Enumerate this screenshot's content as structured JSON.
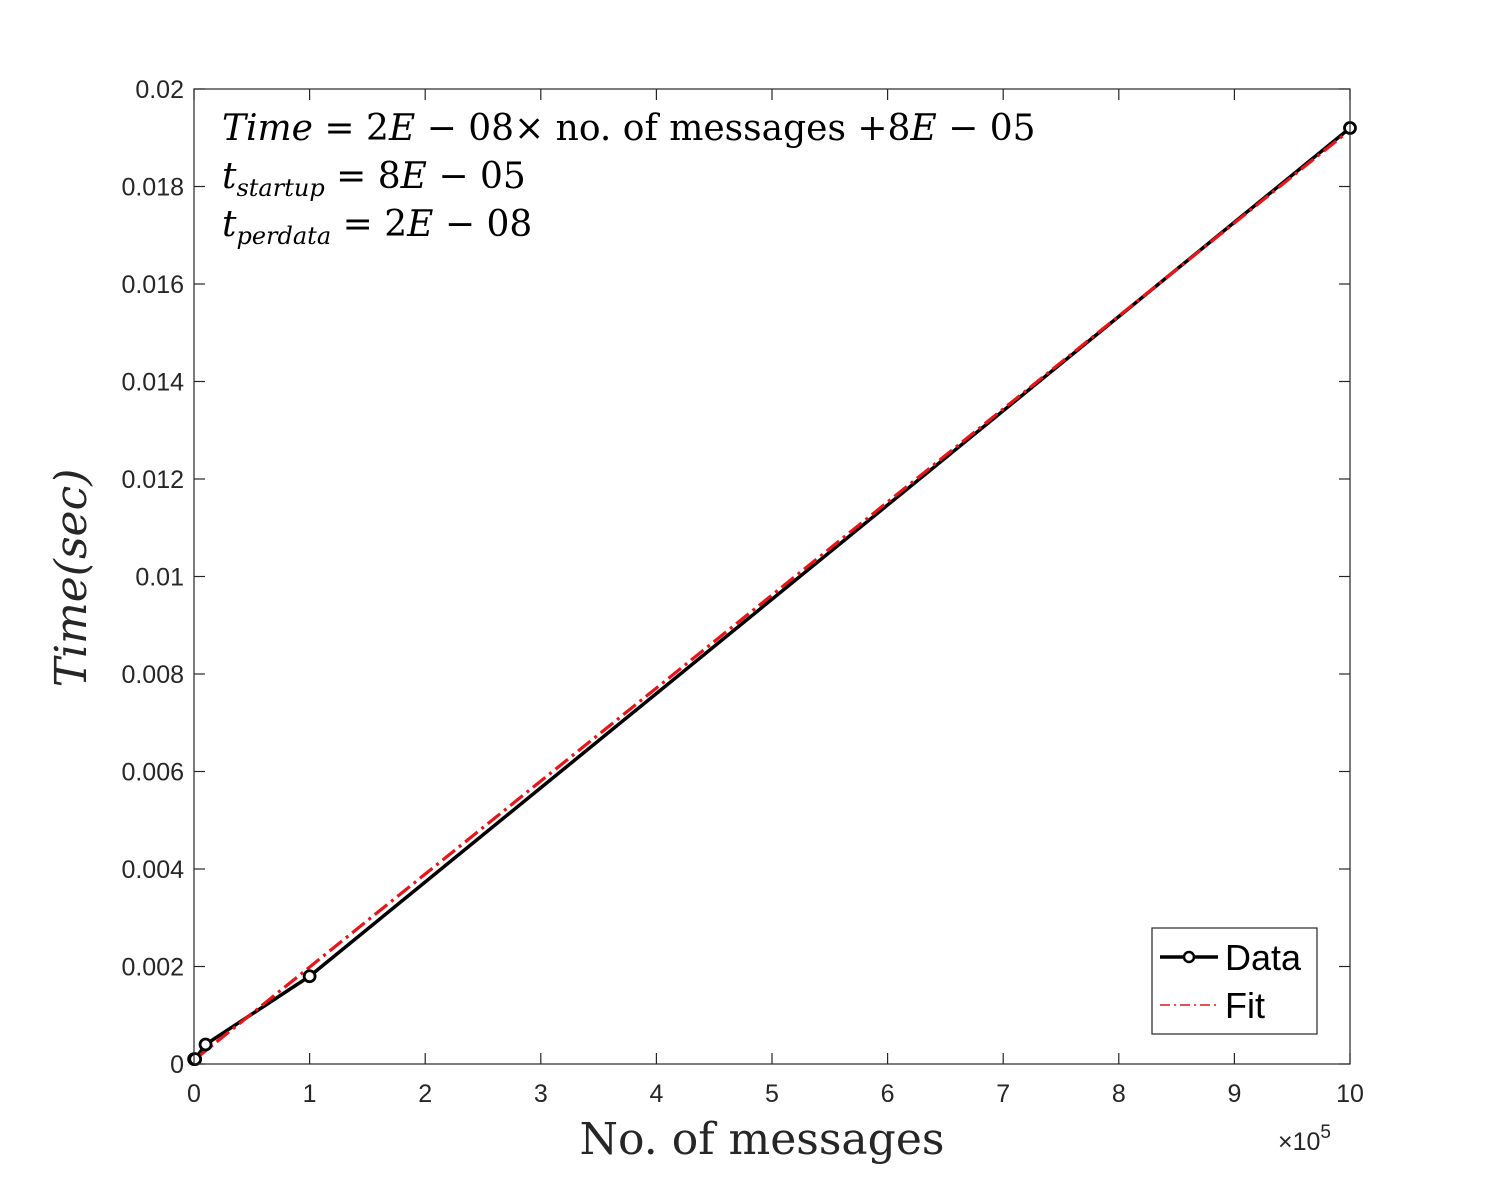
{
  "chart_data": {
    "type": "line",
    "xlabel": "No. of messages",
    "ylabel": "Time(sec)",
    "x_exponent_label": "×10",
    "x_exponent_power": "5",
    "xlim": [
      0,
      10
    ],
    "ylim": [
      0,
      0.02
    ],
    "x_ticks": [
      0,
      1,
      2,
      3,
      4,
      5,
      6,
      7,
      8,
      9,
      10
    ],
    "x_tick_labels": [
      "0",
      "1",
      "2",
      "3",
      "4",
      "5",
      "6",
      "7",
      "8",
      "9",
      "10"
    ],
    "y_ticks": [
      0,
      0.002,
      0.004,
      0.006,
      0.008,
      0.01,
      0.012,
      0.014,
      0.016,
      0.018,
      0.02
    ],
    "y_tick_labels": [
      "0",
      "0.002",
      "0.004",
      "0.006",
      "0.008",
      "0.01",
      "0.012",
      "0.014",
      "0.016",
      "0.018",
      "0.02"
    ],
    "series": [
      {
        "name": "Data",
        "color": "#000000",
        "style": "solid-circle-markers",
        "x": [
          0.001,
          0.01,
          0.1,
          1,
          10
        ],
        "y": [
          0.0001,
          0.0001,
          0.0004,
          0.0018,
          0.0192
        ]
      },
      {
        "name": "Fit",
        "color": "#e8141a",
        "style": "dash-dot",
        "x": [
          0,
          10
        ],
        "y": [
          8e-05,
          0.01916
        ]
      }
    ],
    "annotations": {
      "equation": {
        "lhs": "Time",
        "eq": " = 2",
        "e1": "E",
        "mid": " − 08× no. of messages +8",
        "e2": "E",
        "tail": " − 05"
      },
      "startup": {
        "t": "t",
        "sub": "startup",
        "rest": " = 8",
        "e": "E",
        "tail": " − 05"
      },
      "perdata": {
        "t": "t",
        "sub": "perdata",
        "rest": " = 2",
        "e": "E",
        "tail": " − 08"
      }
    },
    "legend": {
      "position": "bottom-right",
      "entries": [
        "Data",
        "Fit"
      ]
    },
    "grid": false
  }
}
